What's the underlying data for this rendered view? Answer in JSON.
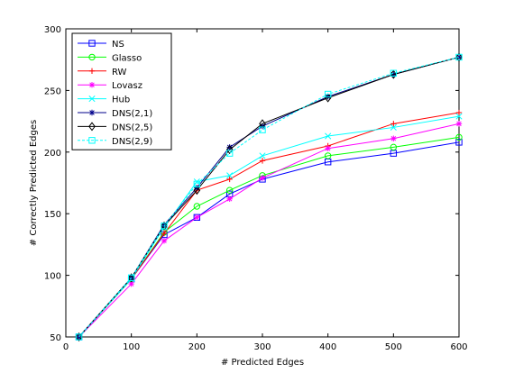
{
  "chart_data": {
    "type": "line",
    "title": "",
    "xlabel": "# Predicted Edges",
    "ylabel": "# Correctly Predicted Edges",
    "xlim": [
      0,
      600
    ],
    "ylim": [
      50,
      300
    ],
    "xticks": [
      0,
      100,
      200,
      300,
      400,
      500,
      600
    ],
    "yticks": [
      50,
      100,
      150,
      200,
      250,
      300
    ],
    "grid": false,
    "legend_position": "top-left",
    "x": [
      20,
      100,
      150,
      200,
      250,
      300,
      400,
      500,
      600
    ],
    "series": [
      {
        "name": "NS",
        "color": "#0000ff",
        "marker": "square",
        "values": [
          50,
          97,
          133,
          147,
          166,
          178,
          192,
          199,
          208
        ]
      },
      {
        "name": "Glasso",
        "color": "#00ff00",
        "marker": "circle",
        "values": [
          50,
          97,
          135,
          156,
          169,
          181,
          197,
          204,
          212
        ]
      },
      {
        "name": "RW",
        "color": "#ff0000",
        "marker": "plus",
        "values": [
          50,
          97,
          134,
          169,
          178,
          193,
          205,
          223,
          232
        ]
      },
      {
        "name": "Lovasz",
        "color": "#ff00ff",
        "marker": "star",
        "values": [
          50,
          93,
          128,
          147,
          162,
          179,
          203,
          211,
          223
        ]
      },
      {
        "name": "Hub",
        "color": "#00ffff",
        "marker": "x",
        "values": [
          50,
          97,
          139,
          176,
          181,
          197,
          213,
          220,
          229
        ]
      },
      {
        "name": "DNS(2,1)",
        "color": "#00008b",
        "marker": "star",
        "values": [
          50,
          98,
          141,
          171,
          204,
          221,
          245,
          263,
          277
        ]
      },
      {
        "name": "DNS(2,5)",
        "color": "#000000",
        "marker": "diamond",
        "values": [
          50,
          98,
          140,
          169,
          202,
          223,
          244,
          263,
          277
        ]
      },
      {
        "name": "DNS(2,9)",
        "color": "#00ffff",
        "marker": "square",
        "dashed": true,
        "values": [
          50,
          98,
          140,
          174,
          199,
          218,
          247,
          264,
          277
        ]
      }
    ]
  }
}
